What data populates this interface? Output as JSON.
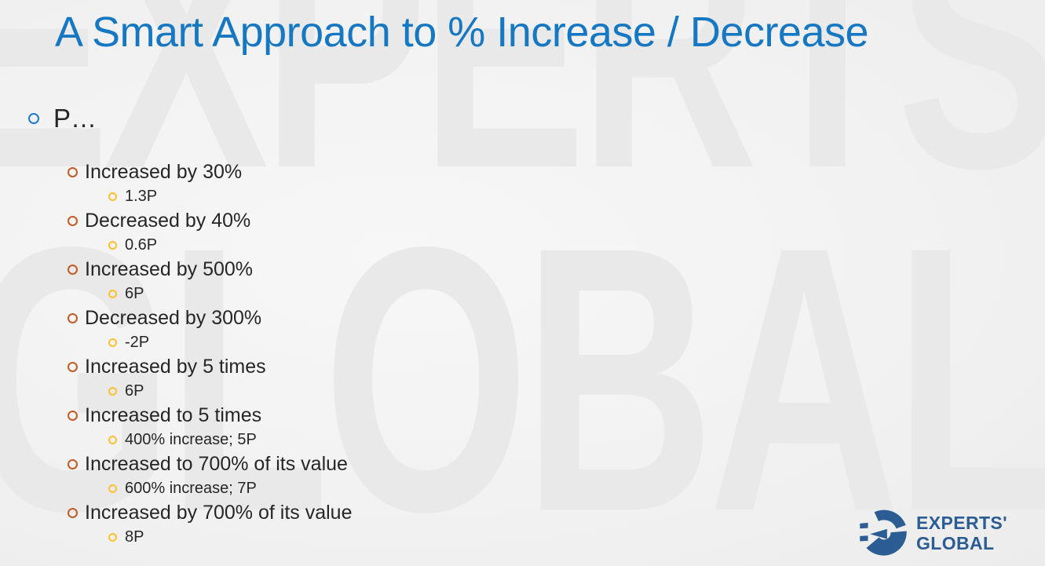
{
  "slide": {
    "title": "A Smart Approach to % Increase / Decrease",
    "top_bullet": {
      "label": "P…"
    },
    "items": [
      {
        "level": 2,
        "text": "Increased by 30%"
      },
      {
        "level": 3,
        "text": "1.3P"
      },
      {
        "level": 2,
        "text": "Decreased by 40%"
      },
      {
        "level": 3,
        "text": "0.6P"
      },
      {
        "level": 2,
        "text": "Increased by 500%"
      },
      {
        "level": 3,
        "text": "6P"
      },
      {
        "level": 2,
        "text": "Decreased by 300%"
      },
      {
        "level": 3,
        "text": "-2P"
      },
      {
        "level": 2,
        "text": "Increased by 5 times"
      },
      {
        "level": 3,
        "text": "6P"
      },
      {
        "level": 2,
        "text": "Increased to 5 times"
      },
      {
        "level": 3,
        "text": "400% increase; 5P"
      },
      {
        "level": 2,
        "text": "Increased to 700% of its value"
      },
      {
        "level": 3,
        "text": "600% increase; 7P"
      },
      {
        "level": 2,
        "text": "Increased by 700% of its value"
      },
      {
        "level": 3,
        "text": "8P"
      }
    ],
    "watermark": {
      "line1": "EXPERTS'",
      "line2": "GLOBAL"
    },
    "logo": {
      "line1": "EXPERTS'",
      "line2": "GLOBAL"
    },
    "colors": {
      "title": "#1678C2",
      "body_text": "#262626",
      "bullet_level1": "#1E7AD0",
      "bullet_level2": "#C45B26",
      "bullet_level3": "#FFC02E",
      "logo_blue": "#2B5C93",
      "watermark": "#E9E9E9",
      "background": "#F2F2F2"
    }
  }
}
